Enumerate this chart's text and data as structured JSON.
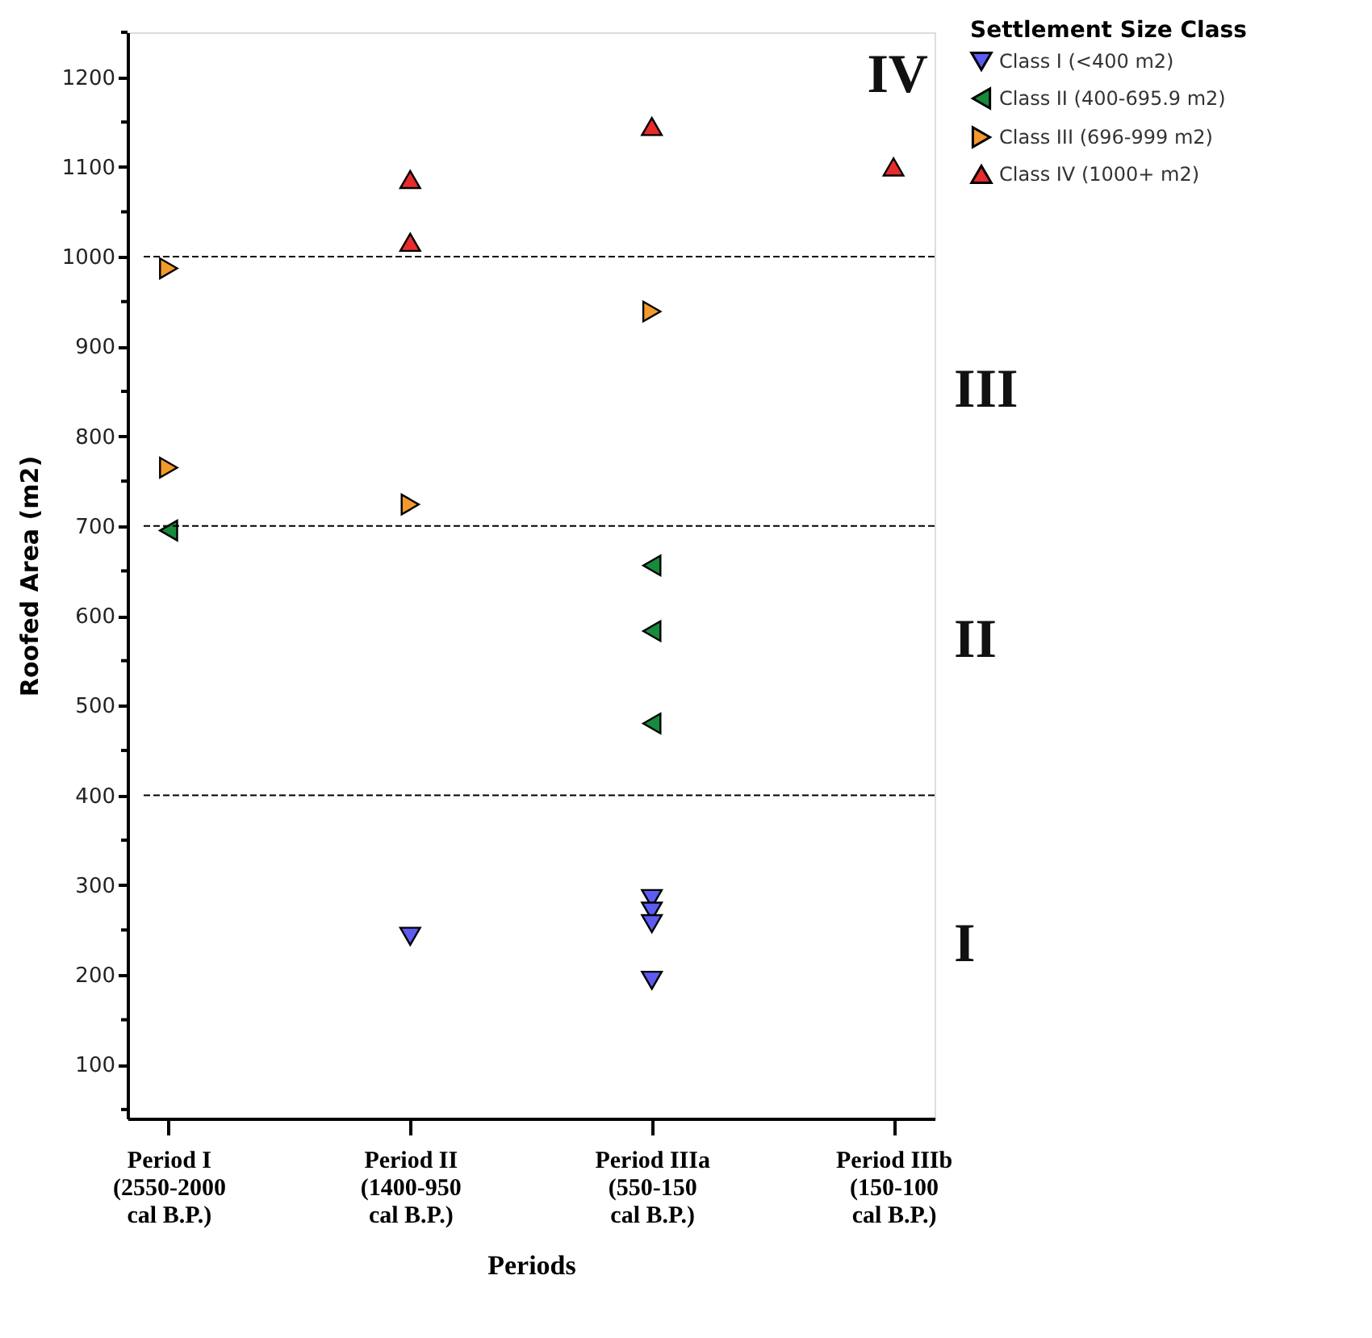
{
  "chart_data": {
    "type": "scatter",
    "xlabel": "Periods",
    "ylabel": "Roofed Area (m2)",
    "legend_title": "Settlement Size Class",
    "categories": [
      "Period I\n(2550-2000\ncal B.P.)",
      "Period II\n(1400-950\ncal B.P.)",
      "Period IIIa\n(550-150\ncal B.P.)",
      "Period IIIb\n(150-100\n cal B.P.)"
    ],
    "series": [
      {
        "name": "Class I (<400 m2)",
        "color": "#5c5cf2",
        "marker": "triangle-down",
        "x": [
          "Period II\n(1400-950\ncal B.P.)",
          "Period IIIa\n(550-150\ncal B.P.)",
          "Period IIIa\n(550-150\ncal B.P.)",
          "Period IIIa\n(550-150\ncal B.P.)",
          "Period IIIa\n(550-150\ncal B.P.)"
        ],
        "values": [
          243,
          285,
          271,
          257,
          194
        ]
      },
      {
        "name": "Class II (400-695.9 m2)",
        "color": "#178a3c",
        "marker": "triangle-left",
        "x": [
          "Period I\n(2550-2000\ncal B.P.)",
          "Period IIIa\n(550-150\ncal B.P.)",
          "Period IIIa\n(550-150\ncal B.P.)",
          "Period IIIa\n(550-150\ncal B.P.)"
        ],
        "values": [
          695,
          656,
          583,
          480
        ]
      },
      {
        "name": "Class III (696-999 m2)",
        "color": "#f39a2c",
        "marker": "triangle-right",
        "x": [
          "Period I\n(2550-2000\ncal B.P.)",
          "Period I\n(2550-2000\ncal B.P.)",
          "Period II\n(1400-950\ncal B.P.)",
          "Period IIIa\n(550-150\ncal B.P.)"
        ],
        "values": [
          987,
          765,
          724,
          939
        ]
      },
      {
        "name": "Class IV (1000+ m2)",
        "color": "#e82c2c",
        "marker": "triangle-up",
        "x": [
          "Period II\n(1400-950\ncal B.P.)",
          "Period II\n(1400-950\ncal B.P.)",
          "Period IIIa\n(550-150\ncal B.P.)",
          "Period IIIb\n(150-100\n cal B.P.)"
        ],
        "values": [
          1086,
          1016,
          1145,
          1100
        ]
      }
    ],
    "ylim": [
      40,
      1250
    ],
    "yticks": [
      {
        "value": 50,
        "label": null
      },
      100,
      {
        "value": 150,
        "label": null
      },
      200,
      {
        "value": 250,
        "label": null
      },
      300,
      {
        "value": 350,
        "label": null
      },
      400,
      {
        "value": 450,
        "label": null
      },
      500,
      {
        "value": 550,
        "label": null
      },
      600,
      {
        "value": 650,
        "label": null
      },
      700,
      {
        "value": 750,
        "label": null
      },
      800,
      {
        "value": 850,
        "label": null
      },
      900,
      {
        "value": 950,
        "label": null
      },
      1000,
      {
        "value": 1050,
        "label": null
      },
      1100,
      {
        "value": 1150,
        "label": null
      },
      1200,
      {
        "value": 1250,
        "label": null
      }
    ],
    "ref_lines": [
      {
        "axis": "y",
        "value": 400,
        "color": "#000000",
        "line_style": "dashed"
      },
      {
        "axis": "y",
        "value": 700,
        "color": "#000000",
        "line_style": "dashed"
      },
      {
        "axis": "y",
        "value": 1000,
        "color": "#000000",
        "line_style": "dashed"
      }
    ],
    "annotations": [
      "IV",
      "III",
      "II",
      "I"
    ],
    "grid": false,
    "legend": "top right"
  }
}
